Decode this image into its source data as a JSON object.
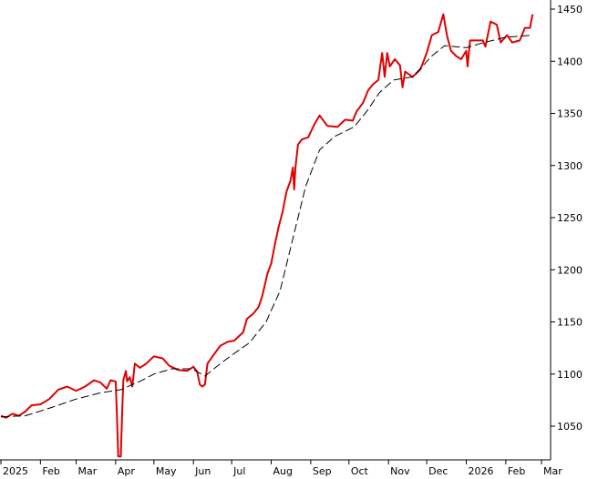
{
  "chart_data": {
    "type": "line",
    "x_axis": {
      "tick_labels": [
        "2025",
        "Feb",
        "Mar",
        "Apr",
        "May",
        "Jun",
        "Jul",
        "Aug",
        "Sep",
        "Oct",
        "Nov",
        "Dec",
        "2026",
        "Feb",
        "Mar"
      ],
      "tick_dates": [
        "2025-01-01",
        "2025-02-01",
        "2025-03-01",
        "2025-04-01",
        "2025-05-01",
        "2025-06-01",
        "2025-07-01",
        "2025-08-01",
        "2025-09-01",
        "2025-10-01",
        "2025-11-01",
        "2025-12-01",
        "2026-01-01",
        "2026-02-01",
        "2026-03-01"
      ],
      "range": [
        "2025-01-01",
        "2026-03-01"
      ]
    },
    "y_axis": {
      "tick_values": [
        1050,
        1100,
        1150,
        1200,
        1250,
        1300,
        1350,
        1400,
        1450
      ],
      "tick_labels": [
        "1050",
        "1100",
        "1150",
        "1200",
        "1250",
        "1300",
        "1350",
        "1400",
        "1450"
      ],
      "range": [
        1015,
        1455
      ],
      "position": "right"
    },
    "grid": false,
    "legend": "none",
    "series": [
      {
        "style": "solid",
        "color": "#e00000",
        "points": [
          [
            "2025-01-01",
            1060
          ],
          [
            "2025-01-05",
            1058
          ],
          [
            "2025-01-10",
            1062
          ],
          [
            "2025-01-15",
            1060
          ],
          [
            "2025-01-20",
            1064
          ],
          [
            "2025-01-25",
            1070
          ],
          [
            "2025-02-01",
            1071
          ],
          [
            "2025-02-08",
            1076
          ],
          [
            "2025-02-15",
            1085
          ],
          [
            "2025-02-22",
            1088
          ],
          [
            "2025-03-01",
            1084
          ],
          [
            "2025-03-08",
            1088
          ],
          [
            "2025-03-15",
            1094
          ],
          [
            "2025-03-20",
            1092
          ],
          [
            "2025-03-25",
            1086
          ],
          [
            "2025-03-28",
            1094
          ],
          [
            "2025-04-01",
            1093
          ],
          [
            "2025-04-02",
            1060
          ],
          [
            "2025-04-03",
            1021
          ],
          [
            "2025-04-05",
            1021
          ],
          [
            "2025-04-06",
            1060
          ],
          [
            "2025-04-07",
            1094
          ],
          [
            "2025-04-09",
            1103
          ],
          [
            "2025-04-10",
            1093
          ],
          [
            "2025-04-12",
            1097
          ],
          [
            "2025-04-14",
            1088
          ],
          [
            "2025-04-16",
            1110
          ],
          [
            "2025-04-20",
            1106
          ],
          [
            "2025-04-25",
            1110
          ],
          [
            "2025-05-01",
            1117
          ],
          [
            "2025-05-08",
            1115
          ],
          [
            "2025-05-13",
            1108
          ],
          [
            "2025-05-20",
            1104
          ],
          [
            "2025-05-27",
            1103
          ],
          [
            "2025-06-01",
            1107
          ],
          [
            "2025-06-04",
            1102
          ],
          [
            "2025-06-06",
            1090
          ],
          [
            "2025-06-08",
            1088
          ],
          [
            "2025-06-10",
            1090
          ],
          [
            "2025-06-12",
            1110
          ],
          [
            "2025-06-16",
            1117
          ],
          [
            "2025-06-22",
            1127
          ],
          [
            "2025-06-28",
            1131
          ],
          [
            "2025-07-03",
            1132
          ],
          [
            "2025-07-10",
            1140
          ],
          [
            "2025-07-13",
            1153
          ],
          [
            "2025-07-18",
            1158
          ],
          [
            "2025-07-22",
            1164
          ],
          [
            "2025-07-25",
            1175
          ],
          [
            "2025-07-29",
            1196
          ],
          [
            "2025-08-01",
            1206
          ],
          [
            "2025-08-04",
            1225
          ],
          [
            "2025-08-07",
            1242
          ],
          [
            "2025-08-10",
            1256
          ],
          [
            "2025-08-13",
            1275
          ],
          [
            "2025-08-16",
            1285
          ],
          [
            "2025-08-18",
            1298
          ],
          [
            "2025-08-19",
            1277
          ],
          [
            "2025-08-20",
            1298
          ],
          [
            "2025-08-22",
            1320
          ],
          [
            "2025-08-25",
            1325
          ],
          [
            "2025-08-30",
            1327
          ],
          [
            "2025-09-04",
            1340
          ],
          [
            "2025-09-08",
            1348
          ],
          [
            "2025-09-14",
            1338
          ],
          [
            "2025-09-22",
            1337
          ],
          [
            "2025-09-28",
            1344
          ],
          [
            "2025-10-04",
            1343
          ],
          [
            "2025-10-07",
            1352
          ],
          [
            "2025-10-12",
            1360
          ],
          [
            "2025-10-16",
            1372
          ],
          [
            "2025-10-20",
            1378
          ],
          [
            "2025-10-24",
            1382
          ],
          [
            "2025-10-27",
            1408
          ],
          [
            "2025-10-29",
            1385
          ],
          [
            "2025-10-31",
            1408
          ],
          [
            "2025-11-02",
            1395
          ],
          [
            "2025-11-06",
            1402
          ],
          [
            "2025-11-10",
            1396
          ],
          [
            "2025-11-12",
            1375
          ],
          [
            "2025-11-14",
            1390
          ],
          [
            "2025-11-20",
            1385
          ],
          [
            "2025-11-26",
            1392
          ],
          [
            "2025-12-01",
            1408
          ],
          [
            "2025-12-05",
            1425
          ],
          [
            "2025-12-10",
            1428
          ],
          [
            "2025-12-14",
            1445
          ],
          [
            "2025-12-17",
            1424
          ],
          [
            "2025-12-20",
            1410
          ],
          [
            "2025-12-24",
            1405
          ],
          [
            "2025-12-28",
            1402
          ],
          [
            "2026-01-01",
            1410
          ],
          [
            "2026-01-02",
            1395
          ],
          [
            "2026-01-04",
            1420
          ],
          [
            "2026-01-08",
            1420
          ],
          [
            "2026-01-14",
            1420
          ],
          [
            "2026-01-16",
            1414
          ],
          [
            "2026-01-20",
            1438
          ],
          [
            "2026-01-25",
            1435
          ],
          [
            "2026-01-28",
            1418
          ],
          [
            "2026-02-02",
            1425
          ],
          [
            "2026-02-06",
            1418
          ],
          [
            "2026-02-12",
            1420
          ],
          [
            "2026-02-16",
            1432
          ],
          [
            "2026-02-20",
            1432
          ],
          [
            "2026-02-22",
            1445
          ]
        ]
      },
      {
        "style": "dashed",
        "color": "#000000",
        "points": [
          [
            "2025-01-01",
            1059
          ],
          [
            "2025-01-20",
            1060
          ],
          [
            "2025-02-10",
            1068
          ],
          [
            "2025-03-01",
            1076
          ],
          [
            "2025-03-20",
            1082
          ],
          [
            "2025-04-05",
            1085
          ],
          [
            "2025-04-20",
            1093
          ],
          [
            "2025-05-01",
            1100
          ],
          [
            "2025-05-15",
            1105
          ],
          [
            "2025-05-31",
            1105
          ],
          [
            "2025-06-10",
            1098
          ],
          [
            "2025-06-20",
            1108
          ],
          [
            "2025-07-01",
            1118
          ],
          [
            "2025-07-15",
            1130
          ],
          [
            "2025-07-28",
            1150
          ],
          [
            "2025-08-08",
            1180
          ],
          [
            "2025-08-18",
            1230
          ],
          [
            "2025-08-28",
            1280
          ],
          [
            "2025-09-08",
            1315
          ],
          [
            "2025-09-20",
            1328
          ],
          [
            "2025-10-05",
            1337
          ],
          [
            "2025-10-15",
            1352
          ],
          [
            "2025-10-25",
            1370
          ],
          [
            "2025-11-05",
            1382
          ],
          [
            "2025-11-20",
            1385
          ],
          [
            "2025-12-05",
            1405
          ],
          [
            "2025-12-15",
            1415
          ],
          [
            "2026-01-01",
            1413
          ],
          [
            "2026-01-15",
            1418
          ],
          [
            "2026-02-01",
            1423
          ],
          [
            "2026-02-22",
            1425
          ]
        ]
      }
    ]
  }
}
